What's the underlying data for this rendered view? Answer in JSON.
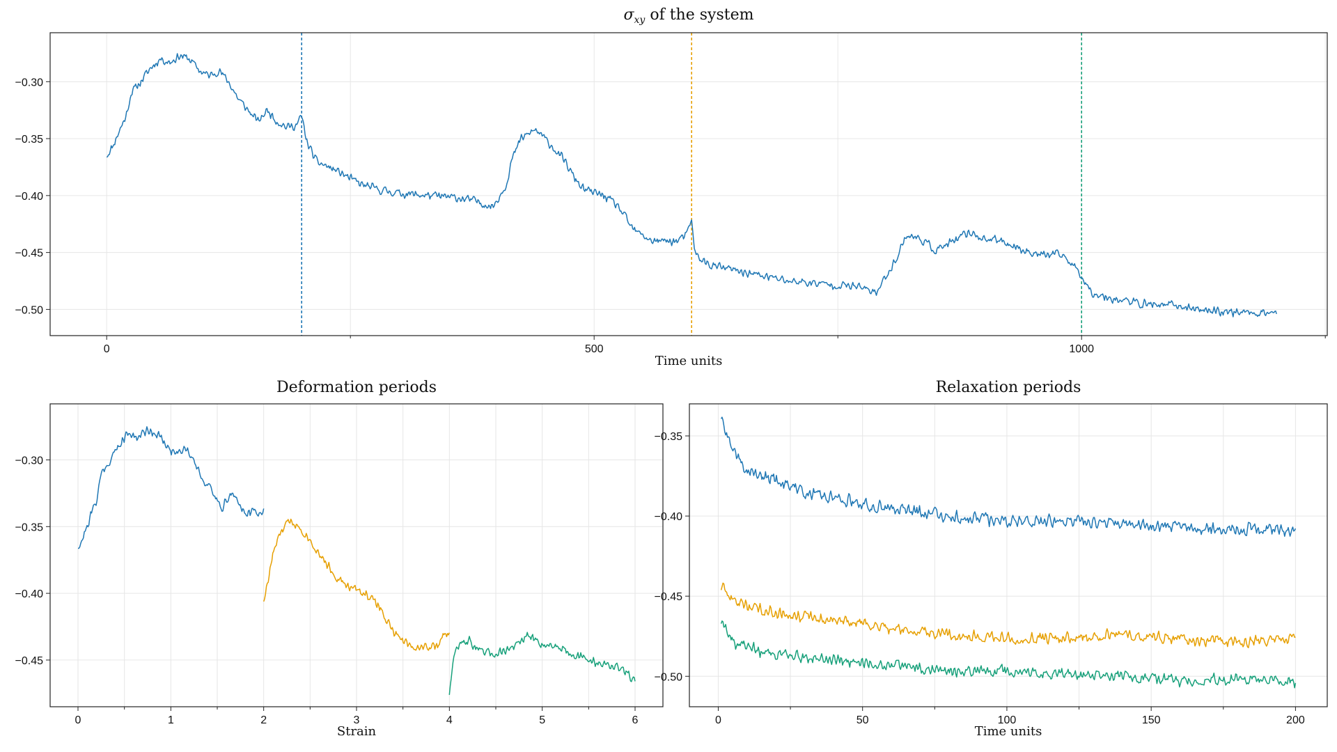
{
  "colors": {
    "blue": "#1f77b4",
    "orange": "#e69f00",
    "green": "#17a07a"
  },
  "chart_data": [
    {
      "id": "top",
      "type": "line",
      "title": "σxy of the system",
      "title_main": "σ",
      "title_sub": "xy",
      "title_rest": " of the system",
      "xlabel": "Time units",
      "ylabel": "",
      "xlim": [
        -58,
        1252
      ],
      "ylim": [
        -0.523,
        -0.257
      ],
      "xticks_major": [
        0,
        500,
        1000
      ],
      "xtick_labels": [
        "0",
        "500",
        "1000"
      ],
      "xticks_minor": [
        250,
        750,
        1250
      ],
      "yticks": [
        -0.3,
        -0.35,
        -0.4,
        -0.45,
        -0.5
      ],
      "ytick_labels": [
        "-0.30",
        "-0.35",
        "-0.40",
        "-0.45",
        "-0.50"
      ],
      "grid": true,
      "vlines": [
        {
          "x": 200,
          "color": "blue"
        },
        {
          "x": 600,
          "color": "orange"
        },
        {
          "x": 1000,
          "color": "green"
        }
      ],
      "series": [
        {
          "color": "blue",
          "x_range": [
            0,
            1200
          ],
          "noise": 0.0045,
          "seed": 11,
          "keypoints": [
            [
              0,
              -0.365
            ],
            [
              6,
              -0.357
            ],
            [
              12,
              -0.345
            ],
            [
              20,
              -0.33
            ],
            [
              25,
              -0.31
            ],
            [
              35,
              -0.3
            ],
            [
              45,
              -0.288
            ],
            [
              55,
              -0.28
            ],
            [
              65,
              -0.283
            ],
            [
              75,
              -0.277
            ],
            [
              85,
              -0.28
            ],
            [
              95,
              -0.29
            ],
            [
              105,
              -0.295
            ],
            [
              115,
              -0.29
            ],
            [
              125,
              -0.3
            ],
            [
              135,
              -0.315
            ],
            [
              145,
              -0.325
            ],
            [
              155,
              -0.335
            ],
            [
              165,
              -0.325
            ],
            [
              175,
              -0.335
            ],
            [
              185,
              -0.34
            ],
            [
              195,
              -0.338
            ],
            [
              200,
              -0.33
            ],
            [
              205,
              -0.352
            ],
            [
              215,
              -0.37
            ],
            [
              240,
              -0.38
            ],
            [
              260,
              -0.39
            ],
            [
              280,
              -0.395
            ],
            [
              300,
              -0.398
            ],
            [
              330,
              -0.4
            ],
            [
              360,
              -0.402
            ],
            [
              380,
              -0.405
            ],
            [
              395,
              -0.41
            ],
            [
              400,
              -0.405
            ],
            [
              410,
              -0.39
            ],
            [
              415,
              -0.37
            ],
            [
              425,
              -0.35
            ],
            [
              440,
              -0.342
            ],
            [
              455,
              -0.355
            ],
            [
              470,
              -0.37
            ],
            [
              480,
              -0.385
            ],
            [
              490,
              -0.395
            ],
            [
              510,
              -0.4
            ],
            [
              525,
              -0.41
            ],
            [
              540,
              -0.43
            ],
            [
              560,
              -0.44
            ],
            [
              585,
              -0.44
            ],
            [
              595,
              -0.435
            ],
            [
              600,
              -0.42
            ],
            [
              603,
              -0.45
            ],
            [
              615,
              -0.46
            ],
            [
              640,
              -0.465
            ],
            [
              670,
              -0.47
            ],
            [
              700,
              -0.475
            ],
            [
              740,
              -0.478
            ],
            [
              770,
              -0.48
            ],
            [
              790,
              -0.485
            ],
            [
              800,
              -0.47
            ],
            [
              810,
              -0.455
            ],
            [
              820,
              -0.435
            ],
            [
              835,
              -0.438
            ],
            [
              850,
              -0.448
            ],
            [
              870,
              -0.44
            ],
            [
              885,
              -0.432
            ],
            [
              900,
              -0.438
            ],
            [
              920,
              -0.44
            ],
            [
              940,
              -0.448
            ],
            [
              960,
              -0.452
            ],
            [
              980,
              -0.452
            ],
            [
              990,
              -0.46
            ],
            [
              1000,
              -0.47
            ],
            [
              1010,
              -0.485
            ],
            [
              1030,
              -0.49
            ],
            [
              1060,
              -0.495
            ],
            [
              1090,
              -0.496
            ],
            [
              1120,
              -0.5
            ],
            [
              1150,
              -0.502
            ],
            [
              1180,
              -0.503
            ],
            [
              1200,
              -0.502
            ]
          ]
        }
      ]
    },
    {
      "id": "deformation",
      "type": "line",
      "title": "Deformation periods",
      "xlabel": "Strain",
      "ylabel": "",
      "xlim": [
        -0.3,
        6.3
      ],
      "ylim": [
        -0.485,
        -0.258
      ],
      "xticks_major": [
        0,
        1,
        2,
        3,
        4,
        5,
        6
      ],
      "xtick_labels": [
        "0",
        "1",
        "2",
        "3",
        "4",
        "5",
        "6"
      ],
      "xticks_minor": [
        0.5,
        1.5,
        2.5,
        3.5,
        4.5,
        5.5
      ],
      "yticks": [
        -0.3,
        -0.35,
        -0.4,
        -0.45
      ],
      "ytick_labels": [
        "-0.30",
        "-0.35",
        "-0.40",
        "-0.45"
      ],
      "grid": true,
      "vlines": [],
      "series": [
        {
          "color": "blue",
          "x_range": [
            0,
            2
          ],
          "noise": 0.0045,
          "seed": 21,
          "keypoints": [
            [
              0,
              -0.365
            ],
            [
              0.06,
              -0.357
            ],
            [
              0.12,
              -0.345
            ],
            [
              0.2,
              -0.33
            ],
            [
              0.25,
              -0.31
            ],
            [
              0.35,
              -0.3
            ],
            [
              0.45,
              -0.288
            ],
            [
              0.55,
              -0.28
            ],
            [
              0.65,
              -0.283
            ],
            [
              0.75,
              -0.277
            ],
            [
              0.85,
              -0.28
            ],
            [
              0.95,
              -0.29
            ],
            [
              1.05,
              -0.295
            ],
            [
              1.15,
              -0.29
            ],
            [
              1.25,
              -0.3
            ],
            [
              1.35,
              -0.315
            ],
            [
              1.45,
              -0.325
            ],
            [
              1.55,
              -0.335
            ],
            [
              1.65,
              -0.325
            ],
            [
              1.75,
              -0.335
            ],
            [
              1.85,
              -0.34
            ],
            [
              1.95,
              -0.338
            ],
            [
              2.0,
              -0.34
            ]
          ]
        },
        {
          "color": "orange",
          "x_range": [
            2,
            4
          ],
          "noise": 0.0042,
          "seed": 33,
          "keypoints": [
            [
              2.0,
              -0.405
            ],
            [
              2.05,
              -0.39
            ],
            [
              2.1,
              -0.37
            ],
            [
              2.2,
              -0.352
            ],
            [
              2.3,
              -0.345
            ],
            [
              2.45,
              -0.355
            ],
            [
              2.6,
              -0.37
            ],
            [
              2.75,
              -0.385
            ],
            [
              2.9,
              -0.395
            ],
            [
              3.1,
              -0.4
            ],
            [
              3.25,
              -0.41
            ],
            [
              3.4,
              -0.43
            ],
            [
              3.6,
              -0.44
            ],
            [
              3.85,
              -0.44
            ],
            [
              3.95,
              -0.432
            ],
            [
              4.0,
              -0.43
            ]
          ]
        },
        {
          "color": "green",
          "x_range": [
            4,
            6
          ],
          "noise": 0.0042,
          "seed": 47,
          "keypoints": [
            [
              4.0,
              -0.475
            ],
            [
              4.03,
              -0.455
            ],
            [
              4.08,
              -0.44
            ],
            [
              4.2,
              -0.435
            ],
            [
              4.35,
              -0.445
            ],
            [
              4.5,
              -0.445
            ],
            [
              4.7,
              -0.44
            ],
            [
              4.85,
              -0.432
            ],
            [
              5.0,
              -0.438
            ],
            [
              5.2,
              -0.44
            ],
            [
              5.4,
              -0.448
            ],
            [
              5.6,
              -0.452
            ],
            [
              5.8,
              -0.455
            ],
            [
              5.9,
              -0.46
            ],
            [
              6.0,
              -0.465
            ]
          ]
        }
      ]
    },
    {
      "id": "relaxation",
      "type": "line",
      "title": "Relaxation periods",
      "xlabel": "Time units",
      "ylabel": "",
      "xlim": [
        -10,
        211
      ],
      "ylim": [
        -0.519,
        -0.33
      ],
      "xticks_major": [
        0,
        50,
        100,
        150,
        200
      ],
      "xtick_labels": [
        "0",
        "50",
        "100",
        "150",
        "200"
      ],
      "xticks_minor": [
        25,
        75,
        125,
        175
      ],
      "yticks": [
        -0.35,
        -0.4,
        -0.45,
        -0.5
      ],
      "ytick_labels": [
        "-0.35",
        "-0.40",
        "-0.45",
        "-0.50"
      ],
      "grid": true,
      "vlines": [],
      "series": [
        {
          "color": "blue",
          "x_range": [
            1,
            200
          ],
          "noise": 0.0048,
          "seed": 52,
          "keypoints": [
            [
              1,
              -0.338
            ],
            [
              3,
              -0.35
            ],
            [
              6,
              -0.362
            ],
            [
              10,
              -0.372
            ],
            [
              20,
              -0.378
            ],
            [
              30,
              -0.385
            ],
            [
              40,
              -0.388
            ],
            [
              50,
              -0.392
            ],
            [
              60,
              -0.395
            ],
            [
              80,
              -0.4
            ],
            [
              100,
              -0.403
            ],
            [
              120,
              -0.403
            ],
            [
              140,
              -0.405
            ],
            [
              160,
              -0.407
            ],
            [
              180,
              -0.408
            ],
            [
              200,
              -0.41
            ]
          ]
        },
        {
          "color": "orange",
          "x_range": [
            1,
            200
          ],
          "noise": 0.0045,
          "seed": 63,
          "keypoints": [
            [
              1,
              -0.445
            ],
            [
              5,
              -0.452
            ],
            [
              10,
              -0.456
            ],
            [
              20,
              -0.46
            ],
            [
              40,
              -0.465
            ],
            [
              60,
              -0.47
            ],
            [
              80,
              -0.474
            ],
            [
              100,
              -0.476
            ],
            [
              120,
              -0.476
            ],
            [
              140,
              -0.474
            ],
            [
              160,
              -0.476
            ],
            [
              180,
              -0.479
            ],
            [
              200,
              -0.476
            ]
          ]
        },
        {
          "color": "green",
          "x_range": [
            1,
            200
          ],
          "noise": 0.0045,
          "seed": 74,
          "keypoints": [
            [
              1,
              -0.466
            ],
            [
              5,
              -0.478
            ],
            [
              10,
              -0.482
            ],
            [
              20,
              -0.486
            ],
            [
              40,
              -0.49
            ],
            [
              60,
              -0.493
            ],
            [
              80,
              -0.496
            ],
            [
              100,
              -0.497
            ],
            [
              120,
              -0.499
            ],
            [
              140,
              -0.5
            ],
            [
              160,
              -0.503
            ],
            [
              180,
              -0.502
            ],
            [
              200,
              -0.503
            ]
          ]
        }
      ]
    }
  ]
}
